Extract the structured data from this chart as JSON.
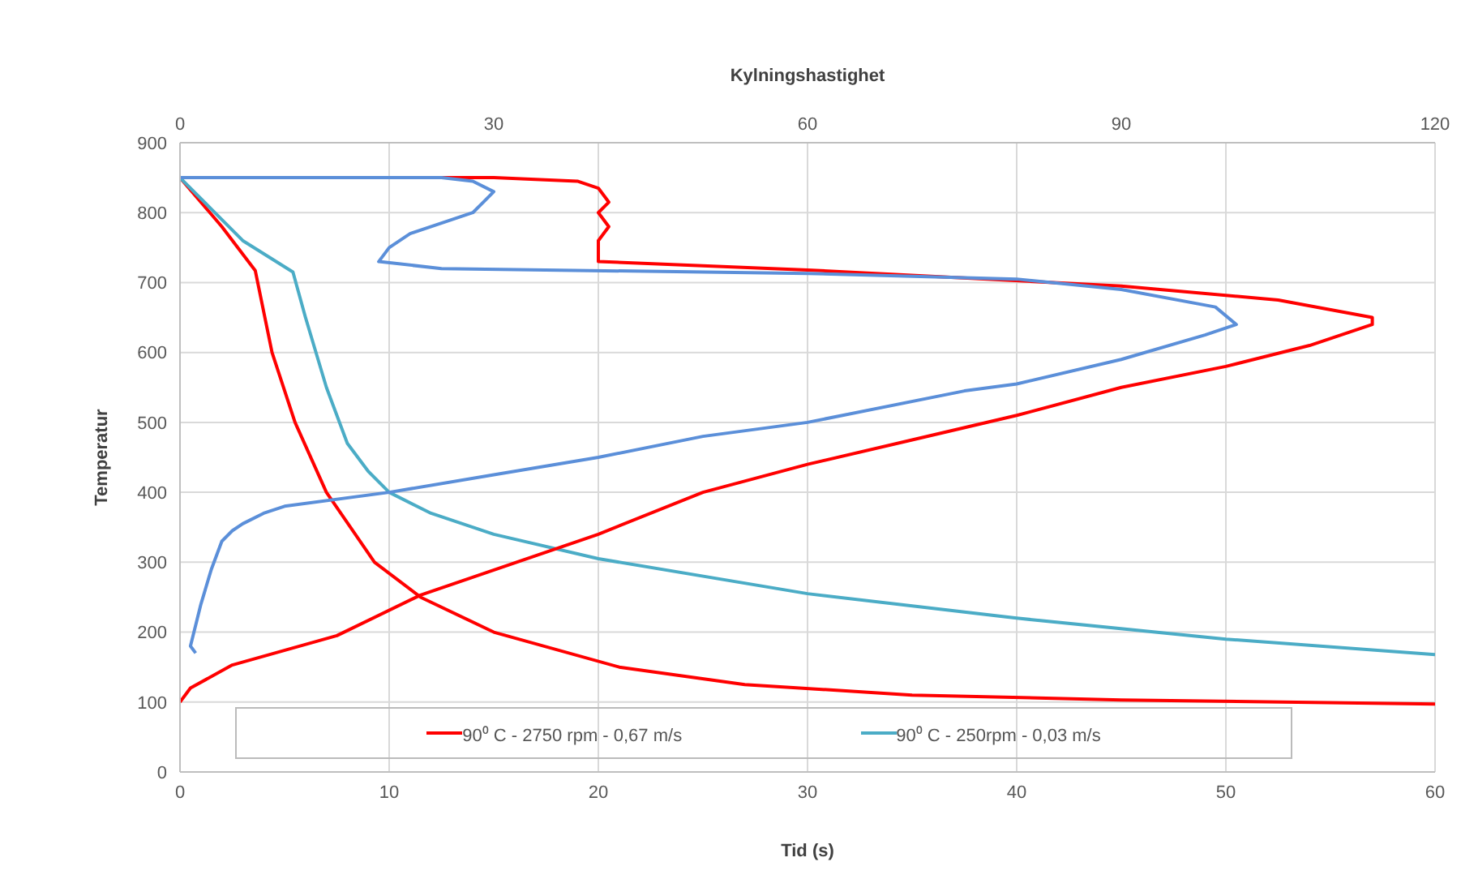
{
  "chart_data": {
    "type": "line",
    "xlabel": "Tid (s)",
    "x2label": "Kylningshastighet",
    "ylabel": "Temperatur",
    "xlim": [
      0,
      60
    ],
    "xticks": [
      0,
      10,
      20,
      30,
      40,
      50,
      60
    ],
    "x2lim": [
      0,
      120
    ],
    "x2ticks": [
      0,
      30,
      60,
      90,
      120
    ],
    "ylim": [
      0,
      900
    ],
    "yticks": [
      0,
      100,
      200,
      300,
      400,
      500,
      600,
      700,
      800,
      900
    ],
    "grid": true,
    "legend": "bottom",
    "series": [
      {
        "name": "90⁰ C - 2750 rpm - 0,67 m/s",
        "color": "#ff0000",
        "x": [
          0,
          2,
          3.6,
          4.4,
          5.5,
          7,
          9.3,
          11.5,
          15,
          21,
          27,
          35,
          45,
          60
        ],
        "values": [
          850,
          780,
          717,
          600,
          500,
          400,
          300,
          250,
          200,
          150,
          125,
          110,
          103,
          97
        ]
      },
      {
        "name": "90⁰ C - 250rpm - 0,03 m/s",
        "color": "#4bacc6",
        "x": [
          0,
          3,
          5.4,
          6,
          7,
          8,
          9,
          10,
          12,
          15,
          20,
          30,
          40,
          50,
          60
        ],
        "values": [
          850,
          760,
          715,
          650,
          550,
          470,
          430,
          400,
          370,
          340,
          305,
          255,
          220,
          190,
          168
        ]
      },
      {
        "color": "#ff0000",
        "axis": "x2",
        "x": [
          0,
          30,
          38,
          40,
          41,
          40,
          41,
          40,
          40,
          60,
          90,
          105,
          114,
          114,
          108,
          100,
          90,
          80,
          70,
          60,
          50,
          40,
          23,
          15,
          5,
          1,
          0
        ],
        "values": [
          850,
          850,
          845,
          835,
          815,
          800,
          780,
          760,
          730,
          718,
          695,
          675,
          650,
          640,
          610,
          580,
          550,
          510,
          475,
          440,
          400,
          340,
          253,
          195,
          153,
          120,
          100
        ]
      },
      {
        "color": "#5b8fd9",
        "axis": "x2",
        "x": [
          0,
          25,
          28,
          30,
          29,
          28,
          25,
          22,
          20,
          19,
          25,
          60,
          80,
          90,
          99,
          101,
          98,
          90,
          80,
          75,
          60,
          50,
          40,
          30,
          20,
          10,
          8,
          6,
          5,
          4,
          3,
          2,
          1,
          1.5
        ],
        "values": [
          850,
          850,
          845,
          830,
          815,
          800,
          785,
          770,
          750,
          730,
          720,
          713,
          705,
          690,
          665,
          640,
          625,
          590,
          555,
          545,
          500,
          480,
          450,
          425,
          400,
          380,
          370,
          355,
          345,
          330,
          290,
          240,
          180,
          170
        ]
      }
    ]
  }
}
